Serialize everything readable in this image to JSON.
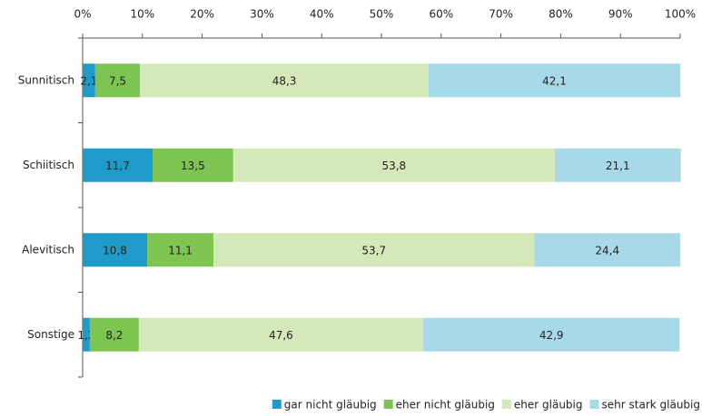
{
  "chart_data": {
    "type": "stacked_bar_horizontal",
    "categories": [
      "Sunnitisch",
      "Schiitisch",
      "Alevitisch",
      "Sonstige"
    ],
    "series": [
      {
        "name": "gar nicht gläubig",
        "color": "#1f9bc9",
        "values": [
          2.1,
          11.7,
          10.8,
          1.2
        ],
        "value_labels": [
          "2,1",
          "11,7",
          "10,8",
          "1,2"
        ]
      },
      {
        "name": "eher nicht gläubig",
        "color": "#7dc450",
        "values": [
          7.5,
          13.5,
          11.1,
          8.2
        ],
        "value_labels": [
          "7,5",
          "13,5",
          "11,1",
          "8,2"
        ]
      },
      {
        "name": "eher gläubig",
        "color": "#d5e8b9",
        "values": [
          48.3,
          53.8,
          53.7,
          47.6
        ],
        "value_labels": [
          "48,3",
          "53,8",
          "53,7",
          "47,6"
        ]
      },
      {
        "name": "sehr stark gläubig",
        "color": "#a7d9e9",
        "values": [
          42.1,
          21.1,
          24.4,
          42.9
        ],
        "value_labels": [
          "42,1",
          "21,1",
          "24,4",
          "42,9"
        ]
      }
    ],
    "xlim": [
      0,
      100
    ],
    "xticks": [
      {
        "value": 0,
        "label": "0%"
      },
      {
        "value": 10,
        "label": "10%"
      },
      {
        "value": 20,
        "label": "20%"
      },
      {
        "value": 30,
        "label": "30%"
      },
      {
        "value": 40,
        "label": "40%"
      },
      {
        "value": 50,
        "label": "50%"
      },
      {
        "value": 60,
        "label": "60%"
      },
      {
        "value": 70,
        "label": "70%"
      },
      {
        "value": 80,
        "label": "80%"
      },
      {
        "value": 90,
        "label": "90%"
      },
      {
        "value": 100,
        "label": "100%"
      }
    ],
    "legend": "bottom-right"
  }
}
